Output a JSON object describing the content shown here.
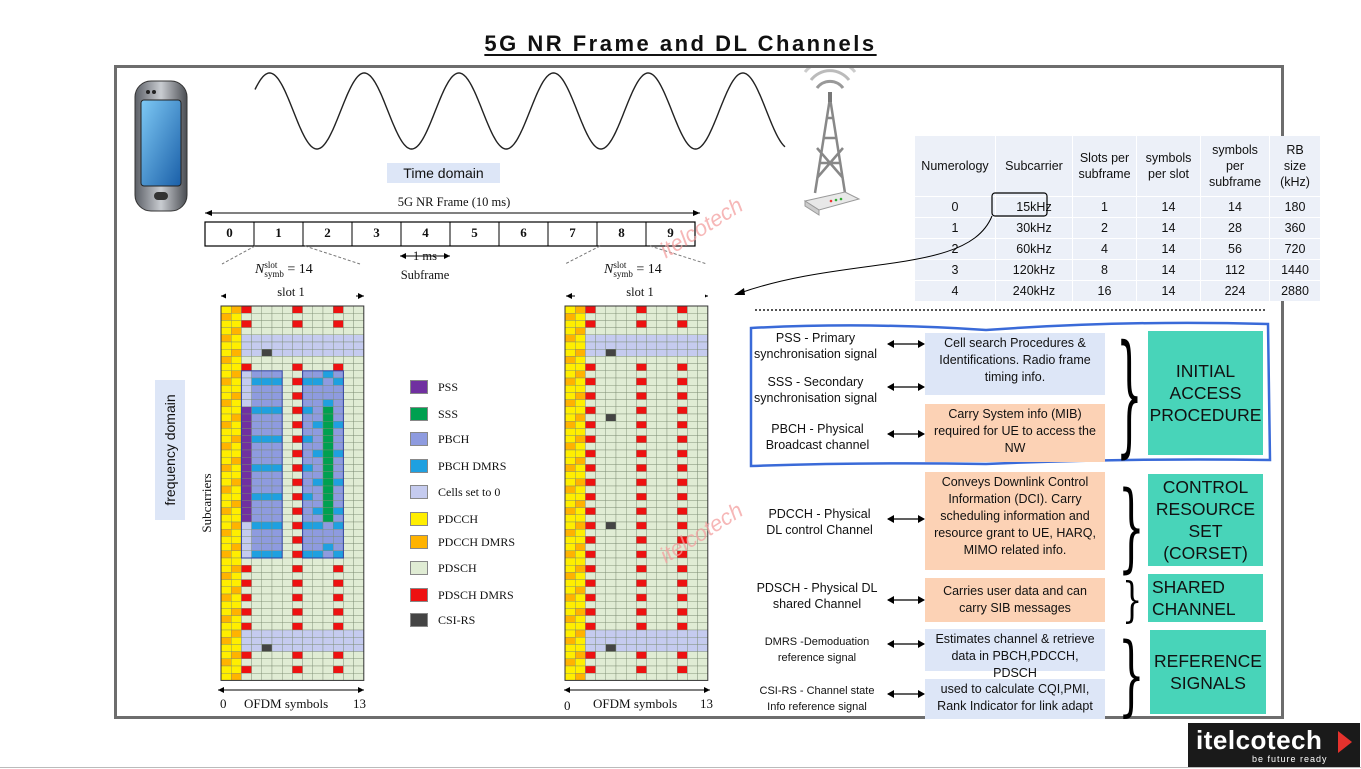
{
  "title": "5G NR Frame and DL Channels",
  "time_domain_label": "Time domain",
  "frame_label": "5G NR Frame (10 ms)",
  "subframes": [
    "0",
    "1",
    "2",
    "3",
    "4",
    "5",
    "6",
    "7",
    "8",
    "9"
  ],
  "subframe_note": {
    "duration": "1 ms",
    "label": "Subframe"
  },
  "nsymb_label": "N",
  "nsymb_super": "slot",
  "nsymb_sub": "symb",
  "nsymb_value": "= 14",
  "slot_label": "slot 1",
  "frequency_label": "frequency domain",
  "subcarriers_label": "Subcarriers",
  "ofdm_axis": {
    "start": "0",
    "label": "OFDM symbols",
    "end": "13"
  },
  "watermark": "itelcotech",
  "legend": [
    {
      "label": "PSS",
      "color": "#7030a0"
    },
    {
      "label": "SSS",
      "color": "#00a050"
    },
    {
      "label": "PBCH",
      "color": "#8e9bdf"
    },
    {
      "label": "PBCH DMRS",
      "color": "#1fa0e0"
    },
    {
      "label": "Cells set to 0",
      "color": "#c5cbef"
    },
    {
      "label": "PDCCH",
      "color": "#ffee00"
    },
    {
      "label": "PDCCH DMRS",
      "color": "#ffb300"
    },
    {
      "label": "PDSCH",
      "color": "#e0ecd4"
    },
    {
      "label": "PDSCH DMRS",
      "color": "#ee1111"
    },
    {
      "label": "CSI-RS",
      "color": "#444444"
    }
  ],
  "numerology_table": {
    "headers": [
      "Numerology",
      "Subcarrier",
      "Slots per subframe",
      "symbols per slot",
      "symbols per subframe",
      "RB size (kHz)"
    ],
    "rows": [
      [
        "0",
        "15kHz",
        "1",
        "14",
        "14",
        "180"
      ],
      [
        "1",
        "30kHz",
        "2",
        "14",
        "28",
        "360"
      ],
      [
        "2",
        "60kHz",
        "4",
        "14",
        "56",
        "720"
      ],
      [
        "3",
        "120kHz",
        "8",
        "14",
        "112",
        "1440"
      ],
      [
        "4",
        "240kHz",
        "16",
        "14",
        "224",
        "2880"
      ]
    ]
  },
  "channels": [
    {
      "name": "PSS - Primary synchronisation signal"
    },
    {
      "name": "SSS - Secondary synchronisation signal"
    },
    {
      "name": "PBCH - Physical Broadcast channel"
    },
    {
      "name": "PDCCH - Physical DL control Channel"
    },
    {
      "name": "PDSCH - Physical DL shared Channel"
    },
    {
      "name": "DMRS -Demoduation reference signal"
    },
    {
      "name": "CSI-RS - Channel state Info reference signal"
    }
  ],
  "descriptions": {
    "sync": "Cell search Procedures & Identifications. Radio frame timing info.",
    "pbch": "Carry System info (MIB) required for UE to access the NW",
    "pdcch": "Conveys Downlink Control Information (DCI). Carry scheduling information and resource grant to UE, HARQ, MIMO related info.",
    "pdsch": "Carries user data and can carry SIB messages",
    "dmrs": "Estimates channel & retrieve data in PBCH,PDCCH, PDSCH",
    "csirs": "used to calculate CQI,PMI, Rank Indicator for link adapt"
  },
  "groups": {
    "initial": "INITIAL ACCESS PROCEDURE",
    "control": "CONTROL RESOURCE SET (CORSET)",
    "shared": "SHARED CHANNEL",
    "reference": "REFERENCE SIGNALS"
  },
  "logo": {
    "text": "itelcotech",
    "tagline": "be future ready"
  }
}
